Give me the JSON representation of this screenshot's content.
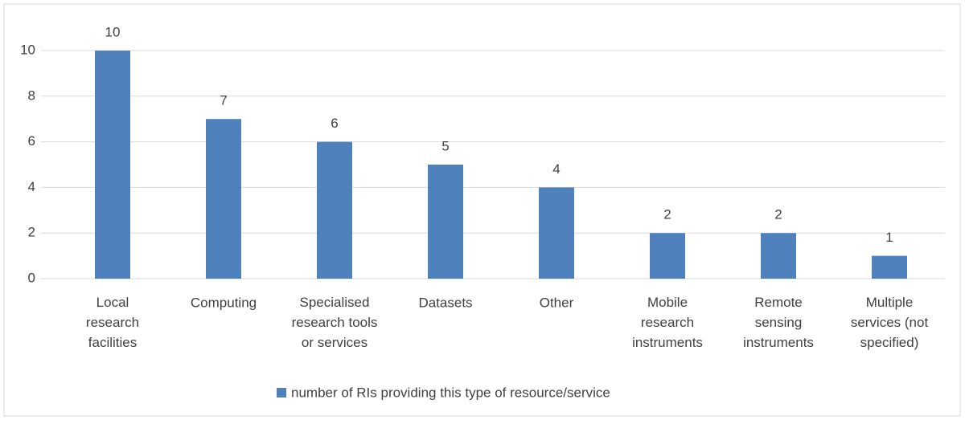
{
  "chart_data": {
    "type": "bar",
    "categories": [
      "Local\nresearch\nfacilities",
      "Computing",
      "Specialised\nresearch tools\nor services",
      "Datasets",
      "Other",
      "Mobile\nresearch\ninstruments",
      "Remote\nsensing\ninstruments",
      "Multiple\nservices (not\nspecified)"
    ],
    "series": [
      {
        "name": "number of RIs providing this type of resource/service",
        "color": "#4f81bd",
        "values": [
          10,
          7,
          6,
          5,
          4,
          2,
          2,
          1
        ]
      }
    ],
    "ylim": [
      0,
      10
    ],
    "yticks": [
      0,
      2,
      4,
      6,
      8,
      10
    ],
    "grid": true,
    "legend": "bottom"
  }
}
